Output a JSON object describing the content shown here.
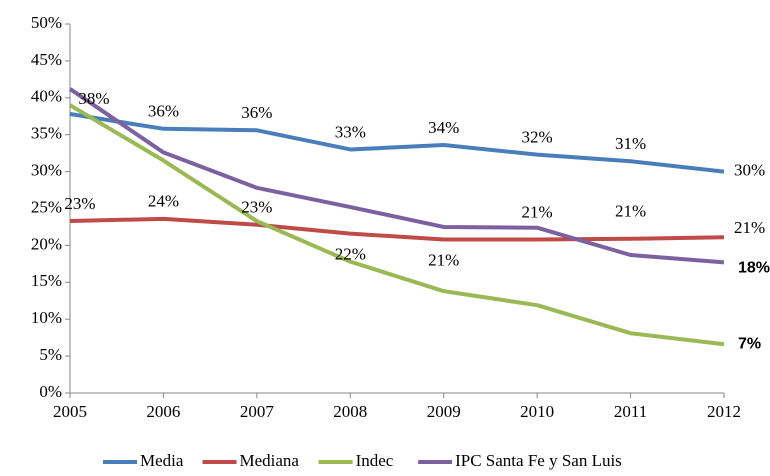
{
  "chart_data": {
    "type": "line",
    "x": [
      2005,
      2006,
      2007,
      2008,
      2009,
      2010,
      2011,
      2012
    ],
    "xlim": [
      2005,
      2012
    ],
    "xticks": [
      2005,
      2006,
      2007,
      2008,
      2009,
      2010,
      2011,
      2012
    ],
    "ylim": [
      0,
      50
    ],
    "yticks": [
      {
        "value": 0,
        "label": "0%"
      },
      {
        "value": 5,
        "label": "5%"
      },
      {
        "value": 10,
        "label": "10%"
      },
      {
        "value": 15,
        "label": "15%"
      },
      {
        "value": 20,
        "label": "20%"
      },
      {
        "value": 25,
        "label": "25%"
      },
      {
        "value": 30,
        "label": "30%"
      },
      {
        "value": 35,
        "label": "35%"
      },
      {
        "value": 40,
        "label": "40%"
      },
      {
        "value": 45,
        "label": "45%"
      },
      {
        "value": 50,
        "label": "50%"
      }
    ],
    "grid": false,
    "legend": "bottom",
    "series": [
      {
        "name": "Media",
        "color": "#4a7ebb",
        "values": [
          37.8,
          35.8,
          35.6,
          33.0,
          33.6,
          32.3,
          31.4,
          30.0
        ],
        "value_labels": [
          "38%",
          "36%",
          "36%",
          "33%",
          "34%",
          "32%",
          "31%",
          "30%"
        ]
      },
      {
        "name": "Mediana",
        "color": "#be4b48",
        "values": [
          23.3,
          23.6,
          22.8,
          21.6,
          20.8,
          20.8,
          20.9,
          21.1
        ],
        "value_labels": [
          "23%",
          "24%",
          "23%",
          "22%",
          "21%",
          "21%",
          "21%",
          "21%"
        ]
      },
      {
        "name": "Indec",
        "color": "#98b954",
        "values": [
          39.0,
          31.5,
          23.3,
          17.8,
          13.8,
          11.9,
          8.1,
          6.6
        ],
        "value_labels": [
          null,
          null,
          null,
          null,
          null,
          null,
          null,
          "7%"
        ]
      },
      {
        "name": "IPC Santa Fe y San Luis",
        "color": "#7d60a0",
        "values": [
          41.2,
          32.6,
          27.8,
          25.2,
          22.5,
          22.4,
          18.7,
          17.7
        ],
        "value_labels": [
          null,
          null,
          null,
          null,
          null,
          null,
          null,
          "18%"
        ]
      }
    ]
  }
}
